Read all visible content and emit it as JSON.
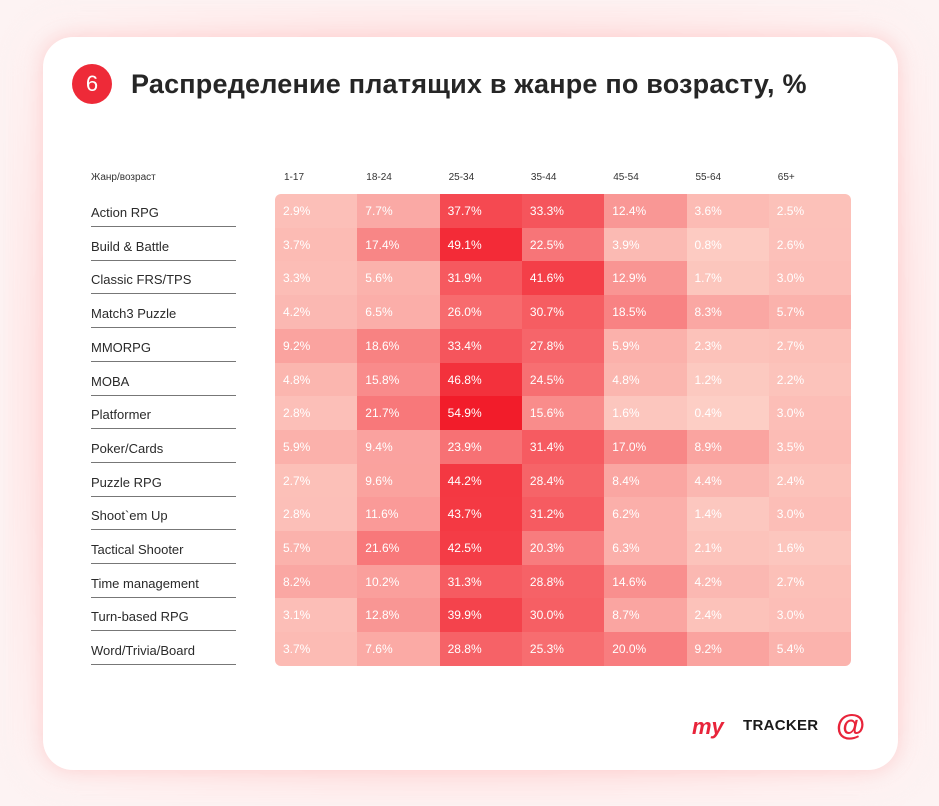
{
  "header": {
    "badge_number": "6",
    "title": "Распределение платящих в жанре по возрасту, %"
  },
  "footer": {
    "logo_my": "my",
    "logo_tracker": "TRACKER",
    "logo_mail": "@"
  },
  "colors": {
    "accent": "#ee2a38",
    "cell_low": "#fdd3c9",
    "cell_high": "#f21c2a"
  },
  "chart_data": {
    "type": "heatmap",
    "title": "Распределение платящих в жанре по возрасту, %",
    "corner_label": "Жанр/возраст",
    "columns": [
      "1-17",
      "18-24",
      "25-34",
      "35-44",
      "45-54",
      "55-64",
      "65+"
    ],
    "rows": [
      "Action RPG",
      "Build & Battle",
      "Classic FRS/TPS",
      "Match3 Puzzle",
      "MMORPG",
      "MOBA",
      "Platformer",
      "Poker/Cards",
      "Puzzle RPG",
      "Shoot`em Up",
      "Tactical Shooter",
      "Time management",
      "Turn-based RPG",
      "Word/Trivia/Board"
    ],
    "values": [
      [
        2.9,
        7.7,
        37.7,
        33.3,
        12.4,
        3.6,
        2.5
      ],
      [
        3.7,
        17.4,
        49.1,
        22.5,
        3.9,
        0.8,
        2.6
      ],
      [
        3.3,
        5.6,
        31.9,
        41.6,
        12.9,
        1.7,
        3.0
      ],
      [
        4.2,
        6.5,
        26.0,
        30.7,
        18.5,
        8.3,
        5.7
      ],
      [
        9.2,
        18.6,
        33.4,
        27.8,
        5.9,
        2.3,
        2.7
      ],
      [
        4.8,
        15.8,
        46.8,
        24.5,
        4.8,
        1.2,
        2.2
      ],
      [
        2.8,
        21.7,
        54.9,
        15.6,
        1.6,
        0.4,
        3.0
      ],
      [
        5.9,
        9.4,
        23.9,
        31.4,
        17.0,
        8.9,
        3.5
      ],
      [
        2.7,
        9.6,
        44.2,
        28.4,
        8.4,
        4.4,
        2.4
      ],
      [
        2.8,
        11.6,
        43.7,
        31.2,
        6.2,
        1.4,
        3.0
      ],
      [
        5.7,
        21.6,
        42.5,
        20.3,
        6.3,
        2.1,
        1.6
      ],
      [
        8.2,
        10.2,
        31.3,
        28.8,
        14.6,
        4.2,
        2.7
      ],
      [
        3.1,
        12.8,
        39.9,
        30.0,
        8.7,
        2.4,
        3.0
      ],
      [
        3.7,
        7.6,
        28.8,
        25.3,
        20.0,
        9.2,
        5.4
      ]
    ],
    "value_suffix": "%",
    "value_range": [
      0,
      55
    ]
  }
}
